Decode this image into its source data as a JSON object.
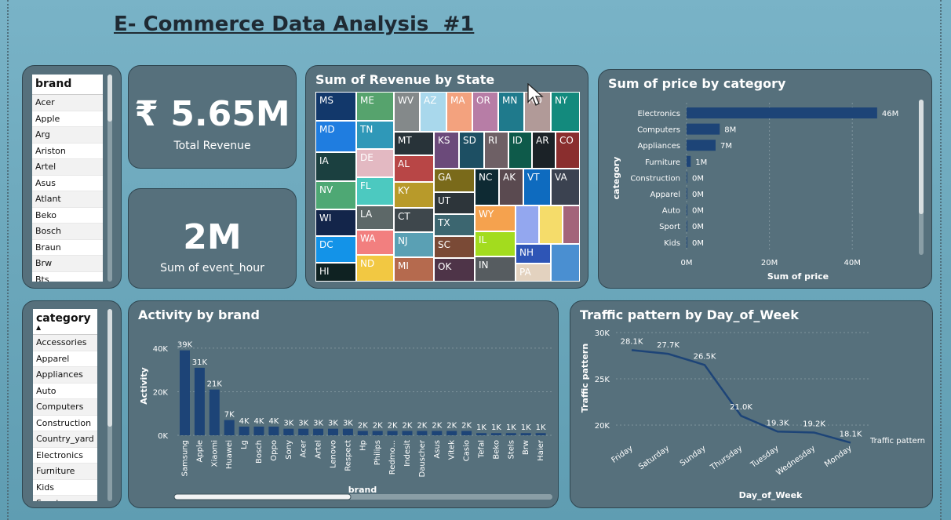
{
  "page_title": "E- Commerce Data Analysis  #1",
  "brand_slicer": {
    "header": "brand",
    "items": [
      "Acer",
      "Apple",
      "Arg",
      "Ariston",
      "Artel",
      "Asus",
      "Atlant",
      "Beko",
      "Bosch",
      "Braun",
      "Brw",
      "Bts"
    ]
  },
  "category_slicer": {
    "header": "category",
    "items": [
      "Accessories",
      "Apparel",
      "Appliances",
      "Auto",
      "Computers",
      "Construction",
      "Country_yard",
      "Electronics",
      "Furniture",
      "Kids",
      "Sport"
    ]
  },
  "kpis": {
    "revenue": {
      "value": "₹ 5.65M",
      "label": "Total Revenue"
    },
    "event_hour": {
      "value": "2M",
      "label": "Sum of event_hour"
    }
  },
  "treemap": {
    "title": "Sum of Revenue by State",
    "cells": [
      {
        "label": "MS",
        "color": "#12386b"
      },
      {
        "label": "ME",
        "color": "#56a36d"
      },
      {
        "label": "WV",
        "color": "#84898a"
      },
      {
        "label": "AZ",
        "color": "#a9d8ec"
      },
      {
        "label": "MA",
        "color": "#f3a27e"
      },
      {
        "label": "OR",
        "color": "#b77da6"
      },
      {
        "label": "MN",
        "color": "#1f7a8c"
      },
      {
        "label": "RO",
        "color": "#b19a98"
      },
      {
        "label": "NY",
        "color": "#138a7d"
      },
      {
        "label": "MD",
        "color": "#1f7de0"
      },
      {
        "label": "TN",
        "color": "#2f98b8"
      },
      {
        "label": "MT",
        "color": "#283339"
      },
      {
        "label": "KS",
        "color": "#6b4a7a"
      },
      {
        "label": "SD",
        "color": "#1d4f63"
      },
      {
        "label": "RI",
        "color": "#6e6065"
      },
      {
        "label": "ID",
        "color": "#0e5a4a"
      },
      {
        "label": "AR",
        "color": "#1b2227"
      },
      {
        "label": "CO",
        "color": "#8a2e2e"
      },
      {
        "label": "IA",
        "color": "#1b4040"
      },
      {
        "label": "DE",
        "color": "#e3b9c2"
      },
      {
        "label": "AL",
        "color": "#b84646"
      },
      {
        "label": "NV",
        "color": "#4ea874"
      },
      {
        "label": "FL",
        "color": "#4cc9c0"
      },
      {
        "label": "KY",
        "color": "#b89a2a"
      },
      {
        "label": "GA",
        "color": "#7a6a1a"
      },
      {
        "label": "NC",
        "color": "#0e2a33"
      },
      {
        "label": "AK",
        "color": "#5a4a50"
      },
      {
        "label": "VT",
        "color": "#0e6bbf"
      },
      {
        "label": "VA",
        "color": "#3b4250"
      },
      {
        "label": "WI",
        "color": "#13254a"
      },
      {
        "label": "LA",
        "color": "#5d6868"
      },
      {
        "label": "CT",
        "color": "#3e474c"
      },
      {
        "label": "UT",
        "color": "#2d353a"
      },
      {
        "label": "DC",
        "color": "#1393e8"
      },
      {
        "label": "WA",
        "color": "#f27f7f"
      },
      {
        "label": "NJ",
        "color": "#5aa0b4"
      },
      {
        "label": "TX",
        "color": "#3c6670"
      },
      {
        "label": "WY",
        "color": "#f5a24e"
      },
      {
        "label": "IL",
        "color": "#a3dc1e"
      },
      {
        "label": "SC",
        "color": "#7a4a36"
      },
      {
        "label": "NH",
        "color": "#2e55b6"
      },
      {
        "label": "HI",
        "color": "#0f2222"
      },
      {
        "label": "ND",
        "color": "#f2c842"
      },
      {
        "label": "MI",
        "color": "#b56a4e"
      },
      {
        "label": "OK",
        "color": "#4e3448"
      },
      {
        "label": "IN",
        "color": "#565c60"
      },
      {
        "label": "PA",
        "color": "#e3d2bf"
      },
      {
        "label": "",
        "color": "#93a7ef"
      },
      {
        "label": "",
        "color": "#f5dc6a"
      },
      {
        "label": "",
        "color": "#a3647a"
      },
      {
        "label": "",
        "color": "#4a8fd1"
      }
    ]
  },
  "price_chart": {
    "title": "Sum of price by category",
    "chart_data": {
      "type": "bar",
      "orientation": "horizontal",
      "categories": [
        "Electronics",
        "Computers",
        "Appliances",
        "Furniture",
        "Construction",
        "Apparel",
        "Auto",
        "Sport",
        "Kids"
      ],
      "values": [
        46,
        8,
        7,
        1,
        0,
        0,
        0,
        0,
        0
      ],
      "value_labels": [
        "46M",
        "8M",
        "7M",
        "1M",
        "0M",
        "0M",
        "0M",
        "0M",
        "0M"
      ],
      "xlabel": "Sum of price",
      "ylabel": "category",
      "x_ticks": [
        "0M",
        "20M",
        "40M"
      ],
      "xlim": [
        0,
        50
      ],
      "color": "#1d4477"
    }
  },
  "activity_chart": {
    "title": "Activity by brand",
    "chart_data": {
      "type": "bar",
      "categories": [
        "Samsung",
        "Apple",
        "Xiaomi",
        "Huawei",
        "Lg",
        "Bosch",
        "Oppo",
        "Sony",
        "Acer",
        "Artel",
        "Lenovo",
        "Respect",
        "Hp",
        "Philips",
        "Redmo...",
        "Indesit",
        "Dauscher",
        "Asus",
        "Vitek",
        "Casio",
        "Tefal",
        "Beko",
        "Stels",
        "Brw",
        "Haier"
      ],
      "values": [
        39,
        31,
        21,
        7,
        4,
        4,
        4,
        3,
        3,
        3,
        3,
        3,
        2,
        2,
        2,
        2,
        2,
        2,
        2,
        2,
        1,
        1,
        1,
        1,
        1
      ],
      "value_labels": [
        "39K",
        "31K",
        "21K",
        "7K",
        "4K",
        "4K",
        "4K",
        "3K",
        "3K",
        "3K",
        "3K",
        "3K",
        "2K",
        "2K",
        "2K",
        "2K",
        "2K",
        "2K",
        "2K",
        "2K",
        "1K",
        "1K",
        "1K",
        "1K",
        "1K"
      ],
      "xlabel": "brand",
      "ylabel": "Activity",
      "y_ticks": [
        "0K",
        "20K",
        "40K"
      ],
      "ylim": [
        0,
        45
      ],
      "color": "#1d4477"
    }
  },
  "traffic_chart": {
    "title": "Traffic pattern by Day_of_Week",
    "chart_data": {
      "type": "line",
      "x": [
        "Friday",
        "Saturday",
        "Sunday",
        "Thursday",
        "Tuesday",
        "Wednesday",
        "Monday"
      ],
      "values": [
        28.1,
        27.7,
        26.5,
        21.0,
        19.3,
        19.2,
        18.1
      ],
      "value_labels": [
        "28.1K",
        "27.7K",
        "26.5K",
        "21.0K",
        "19.3K",
        "19.2K",
        "18.1K"
      ],
      "xlabel": "Day_of_Week",
      "ylabel": "Traffic pattern",
      "y_ticks": [
        "20K",
        "25K",
        "30K"
      ],
      "ylim": [
        17.5,
        30
      ],
      "legend": "Traffic pattern",
      "color": "#1d4477"
    }
  }
}
